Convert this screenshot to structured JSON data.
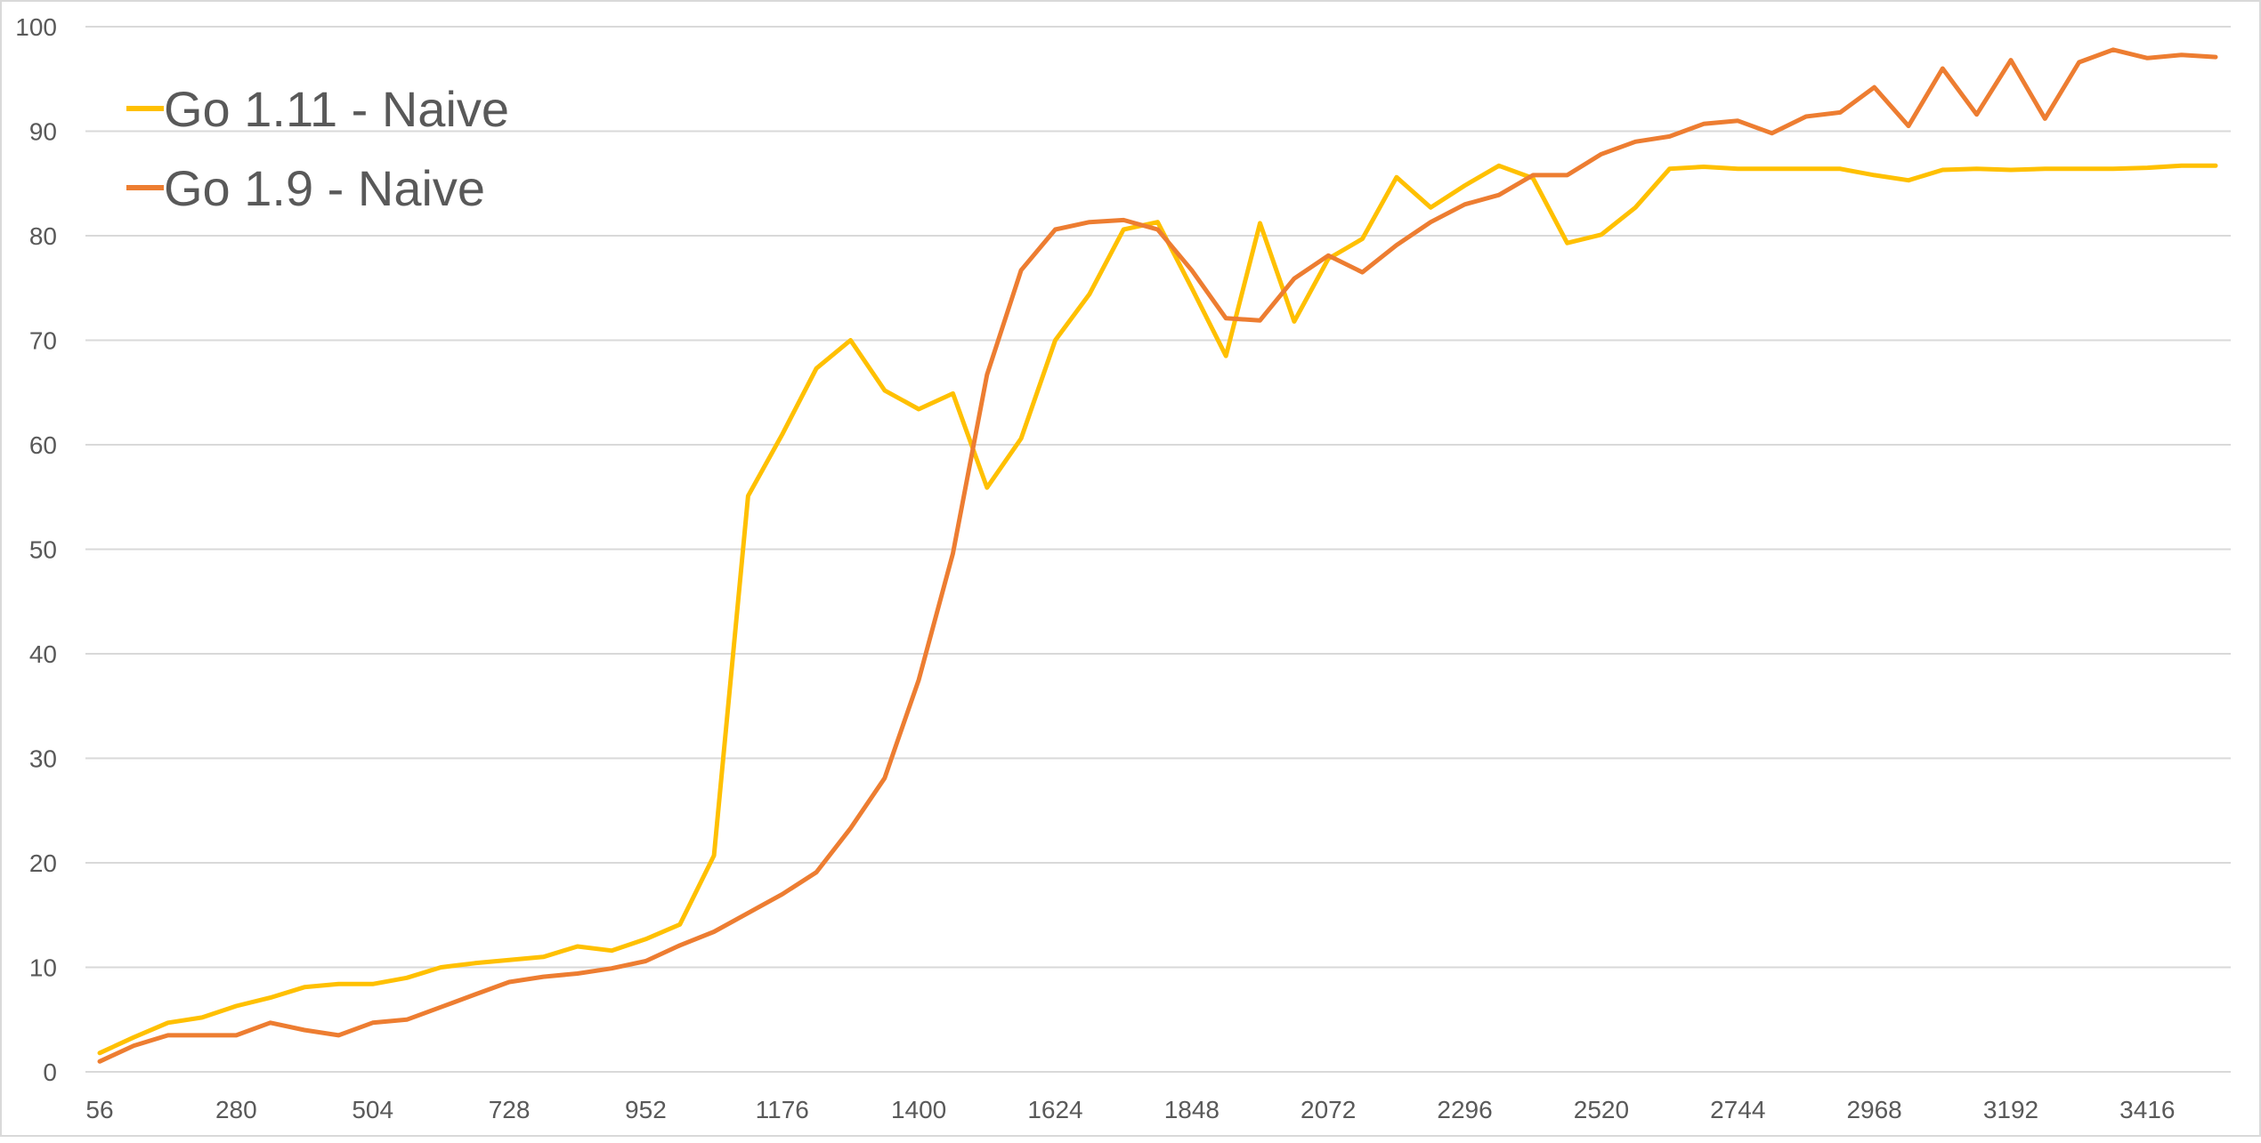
{
  "chart_data": {
    "type": "line",
    "title": "",
    "xlabel": "",
    "ylabel": "",
    "ylim": [
      0,
      100
    ],
    "y_ticks": [
      0,
      10,
      20,
      30,
      40,
      50,
      60,
      70,
      80,
      90,
      100
    ],
    "x": [
      56,
      112,
      168,
      224,
      280,
      336,
      392,
      448,
      504,
      560,
      616,
      672,
      728,
      784,
      840,
      896,
      952,
      1008,
      1064,
      1120,
      1176,
      1232,
      1288,
      1344,
      1400,
      1456,
      1512,
      1568,
      1624,
      1680,
      1736,
      1792,
      1848,
      1904,
      1960,
      2016,
      2072,
      2128,
      2184,
      2240,
      2296,
      2352,
      2408,
      2464,
      2520,
      2576,
      2632,
      2688,
      2744,
      2800,
      2856,
      2912,
      2968,
      3024,
      3080,
      3136,
      3192,
      3248,
      3304,
      3360,
      3416,
      3472,
      3528
    ],
    "x_tick_labels": [
      "56",
      "280",
      "504",
      "728",
      "952",
      "1176",
      "1400",
      "1624",
      "1848",
      "2072",
      "2296",
      "2520",
      "2744",
      "2968",
      "3192",
      "3416"
    ],
    "grid": true,
    "legend": "top-left",
    "series": [
      {
        "name": "Go 1.11 - Naive",
        "color": "#FFC000",
        "values": [
          1.8,
          3.3,
          4.7,
          5.2,
          6.3,
          7.1,
          8.1,
          8.4,
          8.4,
          9.0,
          10.0,
          10.4,
          10.7,
          11.0,
          12.0,
          11.6,
          12.7,
          14.1,
          20.7,
          55.1,
          61.0,
          67.3,
          70.0,
          65.2,
          63.4,
          64.9,
          55.9,
          60.6,
          70.0,
          74.4,
          80.6,
          81.3,
          75.0,
          68.5,
          81.2,
          71.8,
          77.8,
          79.7,
          85.6,
          82.7,
          84.8,
          86.7,
          85.5,
          79.3,
          80.1,
          82.7,
          86.4,
          86.6,
          86.4,
          86.4,
          86.4,
          86.4,
          85.8,
          85.3,
          86.3,
          86.4,
          86.3,
          86.4,
          86.4,
          86.4,
          86.5,
          86.7,
          86.7
        ]
      },
      {
        "name": "Go 1.9 - Naive",
        "color": "#ED7D31",
        "values": [
          1.0,
          2.5,
          3.5,
          3.5,
          3.5,
          4.7,
          4.0,
          3.5,
          4.7,
          5.0,
          6.2,
          7.4,
          8.6,
          9.1,
          9.4,
          9.9,
          10.6,
          12.1,
          13.4,
          15.2,
          17.0,
          19.1,
          23.3,
          28.1,
          37.5,
          49.6,
          66.7,
          76.7,
          80.6,
          81.3,
          81.5,
          80.6,
          76.7,
          72.1,
          71.9,
          75.9,
          78.1,
          76.5,
          79.1,
          81.3,
          83.0,
          83.9,
          85.8,
          85.8,
          87.8,
          89.0,
          89.5,
          90.7,
          91.0,
          89.8,
          91.4,
          91.8,
          94.2,
          90.5,
          96.0,
          91.6,
          96.8,
          91.2,
          96.6,
          97.8,
          97.0,
          97.3,
          97.1
        ]
      }
    ]
  }
}
